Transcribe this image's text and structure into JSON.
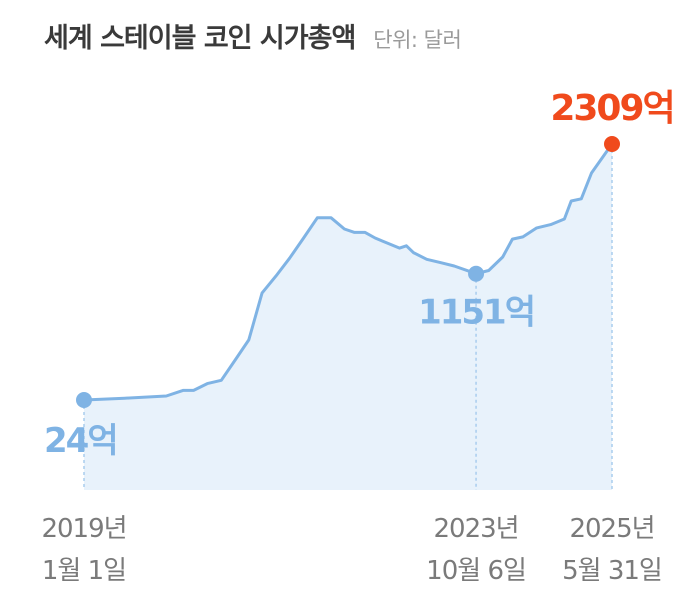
{
  "header": {
    "title": "세계 스테이블 코인 시가총액",
    "unit": "단위: 달러"
  },
  "colors": {
    "line": "#7fb3e4",
    "area": "#e8f2fb",
    "marker": "#7fb3e4",
    "highlight": "#f04a1c",
    "guide": "#a9cdee",
    "label": "#7a7a7a"
  },
  "chart_data": {
    "type": "area",
    "title": "세계 스테이블 코인 시가총액",
    "unit": "단위: 달러",
    "xlabel": "",
    "ylabel": "",
    "ylim": [
      0,
      2500
    ],
    "grid": false,
    "x": [
      "2019-01-01",
      "2019-07-01",
      "2020-01-01",
      "2020-03-15",
      "2020-05-01",
      "2020-07-01",
      "2020-09-01",
      "2020-11-01",
      "2021-01-01",
      "2021-03-01",
      "2021-05-01",
      "2021-07-01",
      "2021-09-01",
      "2021-11-01",
      "2022-01-01",
      "2022-03-01",
      "2022-04-15",
      "2022-06-01",
      "2022-07-15",
      "2022-09-01",
      "2022-11-01",
      "2022-12-01",
      "2023-01-01",
      "2023-03-01",
      "2023-05-01",
      "2023-07-01",
      "2023-10-06",
      "2023-12-01",
      "2024-02-01",
      "2024-03-15",
      "2024-05-01",
      "2024-07-01",
      "2024-09-01",
      "2024-11-01",
      "2024-12-01",
      "2025-01-15",
      "2025-03-01",
      "2025-05-31"
    ],
    "values": [
      24,
      40,
      60,
      110,
      110,
      170,
      200,
      380,
      560,
      980,
      1130,
      1290,
      1470,
      1650,
      1650,
      1550,
      1520,
      1520,
      1470,
      1430,
      1380,
      1400,
      1340,
      1280,
      1250,
      1220,
      1151,
      1180,
      1300,
      1460,
      1480,
      1560,
      1590,
      1640,
      1800,
      1820,
      2050,
      2309
    ],
    "points": [
      {
        "x": "2019-01-01",
        "value": 24,
        "value_label": "24억",
        "date_label": [
          "2019년",
          "1월 1일"
        ]
      },
      {
        "x": "2023-10-06",
        "value": 1151,
        "value_label": "1151억",
        "date_label": [
          "2023년",
          "10월 6일"
        ]
      },
      {
        "x": "2025-05-31",
        "value": 2309,
        "value_label": "2309억",
        "date_label": [
          "2025년",
          "5월 31일"
        ],
        "highlight": true
      }
    ]
  }
}
